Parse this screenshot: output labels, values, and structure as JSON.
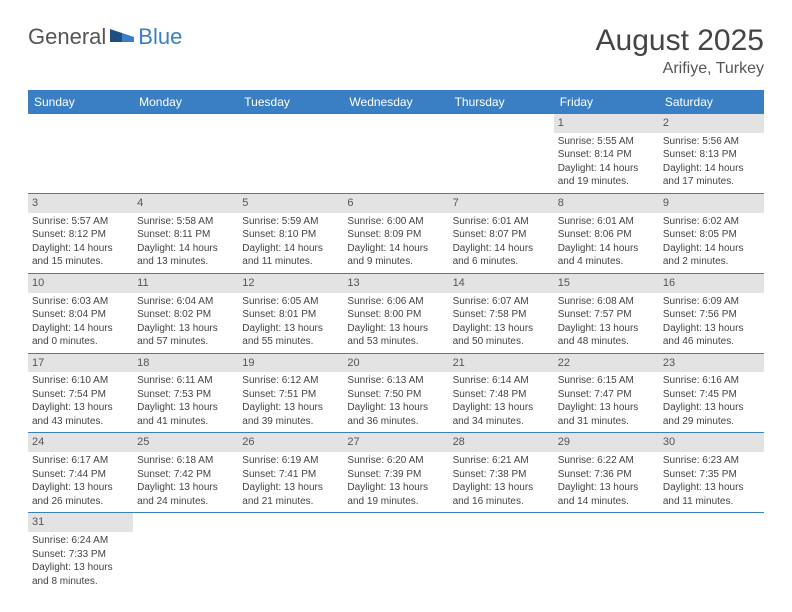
{
  "logo": {
    "part1": "General",
    "part2": "Blue"
  },
  "title": "August 2025",
  "location": "Arifiye, Turkey",
  "colors": {
    "header_bg": "#3a7fc4",
    "header_fg": "#ffffff",
    "daynum_bg": "#e3e3e3",
    "text": "#444444",
    "border": "#3a7fc4"
  },
  "typography": {
    "title_fontsize": 30,
    "location_fontsize": 16,
    "dayheader_fontsize": 12,
    "cell_fontsize": 10
  },
  "day_headers": [
    "Sunday",
    "Monday",
    "Tuesday",
    "Wednesday",
    "Thursday",
    "Friday",
    "Saturday"
  ],
  "weeks": [
    [
      null,
      null,
      null,
      null,
      null,
      {
        "n": "1",
        "sr": "Sunrise: 5:55 AM",
        "ss": "Sunset: 8:14 PM",
        "d1": "Daylight: 14 hours",
        "d2": "and 19 minutes."
      },
      {
        "n": "2",
        "sr": "Sunrise: 5:56 AM",
        "ss": "Sunset: 8:13 PM",
        "d1": "Daylight: 14 hours",
        "d2": "and 17 minutes."
      }
    ],
    [
      {
        "n": "3",
        "sr": "Sunrise: 5:57 AM",
        "ss": "Sunset: 8:12 PM",
        "d1": "Daylight: 14 hours",
        "d2": "and 15 minutes."
      },
      {
        "n": "4",
        "sr": "Sunrise: 5:58 AM",
        "ss": "Sunset: 8:11 PM",
        "d1": "Daylight: 14 hours",
        "d2": "and 13 minutes."
      },
      {
        "n": "5",
        "sr": "Sunrise: 5:59 AM",
        "ss": "Sunset: 8:10 PM",
        "d1": "Daylight: 14 hours",
        "d2": "and 11 minutes."
      },
      {
        "n": "6",
        "sr": "Sunrise: 6:00 AM",
        "ss": "Sunset: 8:09 PM",
        "d1": "Daylight: 14 hours",
        "d2": "and 9 minutes."
      },
      {
        "n": "7",
        "sr": "Sunrise: 6:01 AM",
        "ss": "Sunset: 8:07 PM",
        "d1": "Daylight: 14 hours",
        "d2": "and 6 minutes."
      },
      {
        "n": "8",
        "sr": "Sunrise: 6:01 AM",
        "ss": "Sunset: 8:06 PM",
        "d1": "Daylight: 14 hours",
        "d2": "and 4 minutes."
      },
      {
        "n": "9",
        "sr": "Sunrise: 6:02 AM",
        "ss": "Sunset: 8:05 PM",
        "d1": "Daylight: 14 hours",
        "d2": "and 2 minutes."
      }
    ],
    [
      {
        "n": "10",
        "sr": "Sunrise: 6:03 AM",
        "ss": "Sunset: 8:04 PM",
        "d1": "Daylight: 14 hours",
        "d2": "and 0 minutes."
      },
      {
        "n": "11",
        "sr": "Sunrise: 6:04 AM",
        "ss": "Sunset: 8:02 PM",
        "d1": "Daylight: 13 hours",
        "d2": "and 57 minutes."
      },
      {
        "n": "12",
        "sr": "Sunrise: 6:05 AM",
        "ss": "Sunset: 8:01 PM",
        "d1": "Daylight: 13 hours",
        "d2": "and 55 minutes."
      },
      {
        "n": "13",
        "sr": "Sunrise: 6:06 AM",
        "ss": "Sunset: 8:00 PM",
        "d1": "Daylight: 13 hours",
        "d2": "and 53 minutes."
      },
      {
        "n": "14",
        "sr": "Sunrise: 6:07 AM",
        "ss": "Sunset: 7:58 PM",
        "d1": "Daylight: 13 hours",
        "d2": "and 50 minutes."
      },
      {
        "n": "15",
        "sr": "Sunrise: 6:08 AM",
        "ss": "Sunset: 7:57 PM",
        "d1": "Daylight: 13 hours",
        "d2": "and 48 minutes."
      },
      {
        "n": "16",
        "sr": "Sunrise: 6:09 AM",
        "ss": "Sunset: 7:56 PM",
        "d1": "Daylight: 13 hours",
        "d2": "and 46 minutes."
      }
    ],
    [
      {
        "n": "17",
        "sr": "Sunrise: 6:10 AM",
        "ss": "Sunset: 7:54 PM",
        "d1": "Daylight: 13 hours",
        "d2": "and 43 minutes."
      },
      {
        "n": "18",
        "sr": "Sunrise: 6:11 AM",
        "ss": "Sunset: 7:53 PM",
        "d1": "Daylight: 13 hours",
        "d2": "and 41 minutes."
      },
      {
        "n": "19",
        "sr": "Sunrise: 6:12 AM",
        "ss": "Sunset: 7:51 PM",
        "d1": "Daylight: 13 hours",
        "d2": "and 39 minutes."
      },
      {
        "n": "20",
        "sr": "Sunrise: 6:13 AM",
        "ss": "Sunset: 7:50 PM",
        "d1": "Daylight: 13 hours",
        "d2": "and 36 minutes."
      },
      {
        "n": "21",
        "sr": "Sunrise: 6:14 AM",
        "ss": "Sunset: 7:48 PM",
        "d1": "Daylight: 13 hours",
        "d2": "and 34 minutes."
      },
      {
        "n": "22",
        "sr": "Sunrise: 6:15 AM",
        "ss": "Sunset: 7:47 PM",
        "d1": "Daylight: 13 hours",
        "d2": "and 31 minutes."
      },
      {
        "n": "23",
        "sr": "Sunrise: 6:16 AM",
        "ss": "Sunset: 7:45 PM",
        "d1": "Daylight: 13 hours",
        "d2": "and 29 minutes."
      }
    ],
    [
      {
        "n": "24",
        "sr": "Sunrise: 6:17 AM",
        "ss": "Sunset: 7:44 PM",
        "d1": "Daylight: 13 hours",
        "d2": "and 26 minutes."
      },
      {
        "n": "25",
        "sr": "Sunrise: 6:18 AM",
        "ss": "Sunset: 7:42 PM",
        "d1": "Daylight: 13 hours",
        "d2": "and 24 minutes."
      },
      {
        "n": "26",
        "sr": "Sunrise: 6:19 AM",
        "ss": "Sunset: 7:41 PM",
        "d1": "Daylight: 13 hours",
        "d2": "and 21 minutes."
      },
      {
        "n": "27",
        "sr": "Sunrise: 6:20 AM",
        "ss": "Sunset: 7:39 PM",
        "d1": "Daylight: 13 hours",
        "d2": "and 19 minutes."
      },
      {
        "n": "28",
        "sr": "Sunrise: 6:21 AM",
        "ss": "Sunset: 7:38 PM",
        "d1": "Daylight: 13 hours",
        "d2": "and 16 minutes."
      },
      {
        "n": "29",
        "sr": "Sunrise: 6:22 AM",
        "ss": "Sunset: 7:36 PM",
        "d1": "Daylight: 13 hours",
        "d2": "and 14 minutes."
      },
      {
        "n": "30",
        "sr": "Sunrise: 6:23 AM",
        "ss": "Sunset: 7:35 PM",
        "d1": "Daylight: 13 hours",
        "d2": "and 11 minutes."
      }
    ],
    [
      {
        "n": "31",
        "sr": "Sunrise: 6:24 AM",
        "ss": "Sunset: 7:33 PM",
        "d1": "Daylight: 13 hours",
        "d2": "and 8 minutes."
      },
      null,
      null,
      null,
      null,
      null,
      null
    ]
  ]
}
